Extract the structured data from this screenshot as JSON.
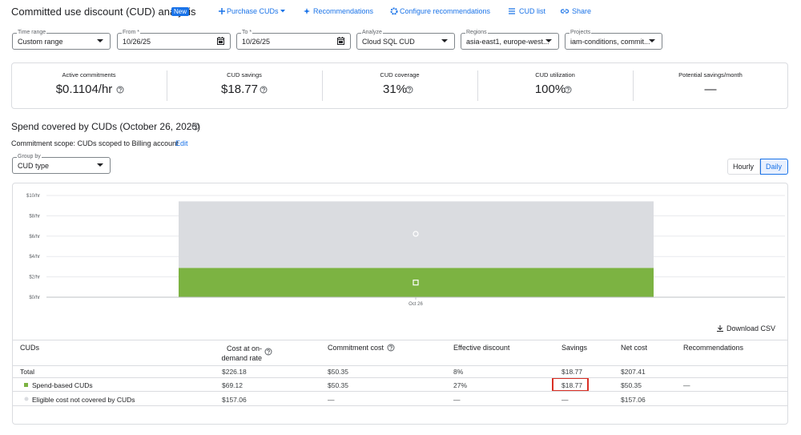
{
  "header": {
    "title": "Committed use discount (CUD) analysis",
    "badge": "New",
    "actions": [
      "Purchase CUDs",
      "Recommendations",
      "Configure recommendations",
      "CUD list",
      "Share"
    ]
  },
  "filters": [
    {
      "label": "Time range",
      "value": "Custom range"
    },
    {
      "label": "From *",
      "value": "10/26/25"
    },
    {
      "label": "To *",
      "value": "10/26/25"
    },
    {
      "label": "Analyze",
      "value": "Cloud SQL CUD"
    },
    {
      "label": "Regions",
      "value": "asia-east1, europe-west..."
    },
    {
      "label": "Projects",
      "value": "iam-conditions, commit..."
    }
  ],
  "metrics": [
    {
      "label": "Active commitments",
      "value": "$0.1104/hr"
    },
    {
      "label": "CUD savings",
      "value": "$18.77"
    },
    {
      "label": "CUD coverage",
      "value": "31%"
    },
    {
      "label": "CUD utilization",
      "value": "100%"
    },
    {
      "label": "Potential savings/month",
      "value": "—"
    }
  ],
  "section": {
    "title": "Spend covered by CUDs (October 26, 2025)",
    "scope": "Commitment scope: CUDs scoped to Billing account",
    "edit": "Edit",
    "group_by_label": "Group by",
    "group_by_value": "CUD type",
    "toggles": [
      "Hourly",
      "Daily"
    ]
  },
  "chart_data": {
    "type": "stacked_bar",
    "categories": [
      "Oct 26"
    ],
    "series": [
      {
        "color": "#7cb342",
        "values": [
          2.88
        ]
      },
      {
        "color": "#dadce0",
        "values": [
          6.54
        ]
      }
    ],
    "ylim": [
      0,
      10
    ],
    "yticks": [
      {
        "value": 0,
        "label": "$0/hr"
      },
      {
        "value": 2,
        "label": "$2/hr"
      },
      {
        "value": 4,
        "label": "$4/hr"
      },
      {
        "value": 6,
        "label": "$6/hr"
      },
      {
        "value": 8,
        "label": "$8/hr"
      },
      {
        "value": 10,
        "label": "$10/hr"
      }
    ],
    "grid": true
  },
  "download": "Download CSV",
  "table": {
    "columns": [
      "CUDs",
      "Cost at on-demand rate",
      "Commitment cost",
      "Effective discount",
      "Savings",
      "Net cost",
      "Recommendations"
    ],
    "rows": [
      [
        "Total",
        "$226.18",
        "$50.35",
        "8%",
        "$18.77",
        "$207.41",
        null
      ],
      [
        "Spend-based CUDs",
        "$69.12",
        "$50.35",
        "27%",
        "$18.77",
        "$50.35",
        "—"
      ],
      [
        "Eligible cost not covered by CUDs",
        "$157.06",
        "—",
        "—",
        "—",
        "$157.06",
        null
      ]
    ]
  }
}
